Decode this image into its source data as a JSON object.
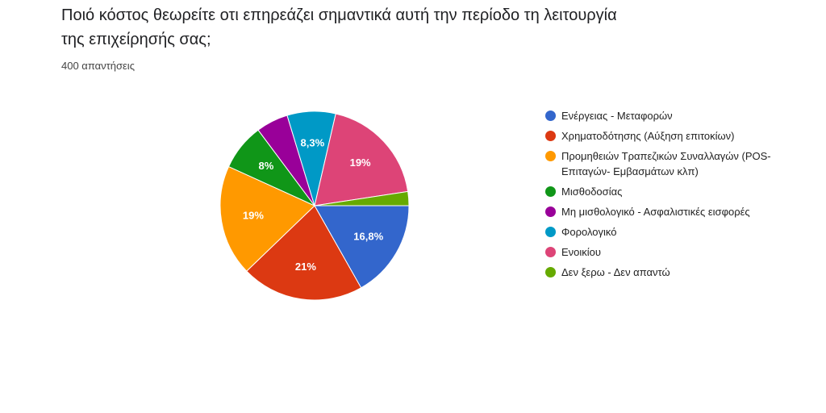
{
  "chart_data": {
    "type": "pie",
    "title": "Ποιό κόστος θεωρείτε οτι επηρεάζει σημαντικά αυτή την περίοδο τη λειτουργία της επιχείρησής σας;",
    "subtitle": "400 απαντήσεις",
    "categories": [
      "Ενέργειας - Μεταφορών",
      "Χρηματοδότησης (Αύξηση επιτοκίων)",
      "Προμηθειών Τραπεζικών Συναλλαγών (POS-Επιταγών- Εμβασμάτων κλπ)",
      "Μισθοδοσίας",
      "Μη μισθολογικό - Ασφαλιστικές εισφορές",
      "Φορολογικό",
      "Ενοικίου",
      "Δεν ξερω - Δεν απαντώ"
    ],
    "values": [
      16.8,
      21,
      19,
      8,
      5.5,
      8.3,
      19,
      2.4
    ],
    "value_labels": [
      "16,8%",
      "21%",
      "19%",
      "8%",
      null,
      "8,3%",
      "19%",
      null
    ],
    "colors": [
      "#3366cc",
      "#dc3912",
      "#ff9900",
      "#109618",
      "#990099",
      "#0099c6",
      "#dd4477",
      "#66aa00"
    ]
  }
}
